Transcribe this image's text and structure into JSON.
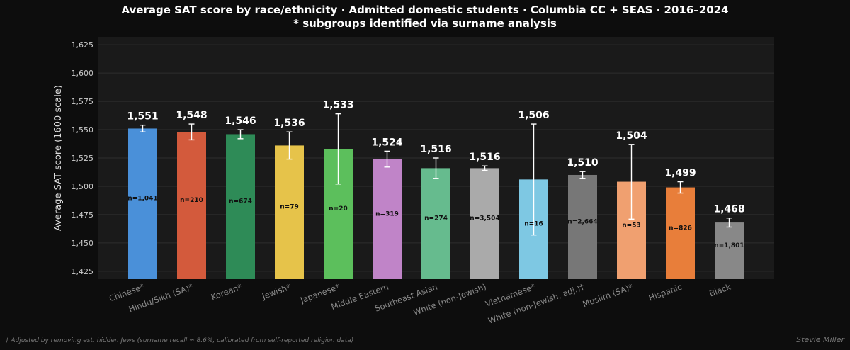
{
  "chart_data": {
    "type": "bar",
    "title": "Average SAT score by race/ethnicity · Admitted domestic students · Columbia CC + SEAS · 2016–2024",
    "subtitle": "* subgroups identified via surname analysis",
    "xlabel": "",
    "ylabel": "Average SAT score (1600 scale)",
    "ylim": [
      1418,
      1632
    ],
    "yticks": [
      "1,425",
      "1,450",
      "1,475",
      "1,500",
      "1,525",
      "1,550",
      "1,575",
      "1,600",
      "1,625"
    ],
    "ytick_values": [
      1425,
      1450,
      1475,
      1500,
      1525,
      1550,
      1575,
      1600,
      1625
    ],
    "grid": true,
    "categories": [
      "Chinese*",
      "Hindu/Sikh (SA)*",
      "Korean*",
      "Jewish*",
      "Japanese*",
      "Middle Eastern",
      "Southeast Asian",
      "White (non-Jewish)",
      "Vietnamese*",
      "White (non-Jewish, adj.)†",
      "Muslim (SA)*",
      "Hispanic",
      "Black"
    ],
    "values": [
      1551,
      1548,
      1546,
      1536,
      1533,
      1524,
      1516,
      1516,
      1506,
      1510,
      1504,
      1499,
      1468
    ],
    "value_labels": [
      "1,551",
      "1,548",
      "1,546",
      "1,536",
      "1,533",
      "1,524",
      "1,516",
      "1,516",
      "1,506",
      "1,510",
      "1,504",
      "1,499",
      "1,468"
    ],
    "n_labels": [
      "n=1,041",
      "n=210",
      "n=674",
      "n=79",
      "n=20",
      "n=319",
      "n=274",
      "n=3,504",
      "n=16",
      "n=2,664",
      "n=53",
      "n=826",
      "n=1,801"
    ],
    "error_low": [
      1548,
      1541,
      1542,
      1524,
      1502,
      1517,
      1507,
      1514,
      1457,
      1507,
      1471,
      1494,
      1464
    ],
    "error_high": [
      1554,
      1555,
      1550,
      1548,
      1564,
      1531,
      1525,
      1518,
      1555,
      1513,
      1537,
      1504,
      1472
    ],
    "colors": [
      "#4a90d9",
      "#d35a3c",
      "#2e8b57",
      "#e6c34a",
      "#5cbf5c",
      "#c084c8",
      "#66bb8e",
      "#aaaaaa",
      "#7ec8e3",
      "#777777",
      "#f0a070",
      "#e87e3a",
      "#888888"
    ]
  },
  "footnote": "† Adjusted by removing est. hidden Jews (surname recall ≈ 8.6%, calibrated from self-reported religion data)",
  "credit": "Stevie Miller"
}
